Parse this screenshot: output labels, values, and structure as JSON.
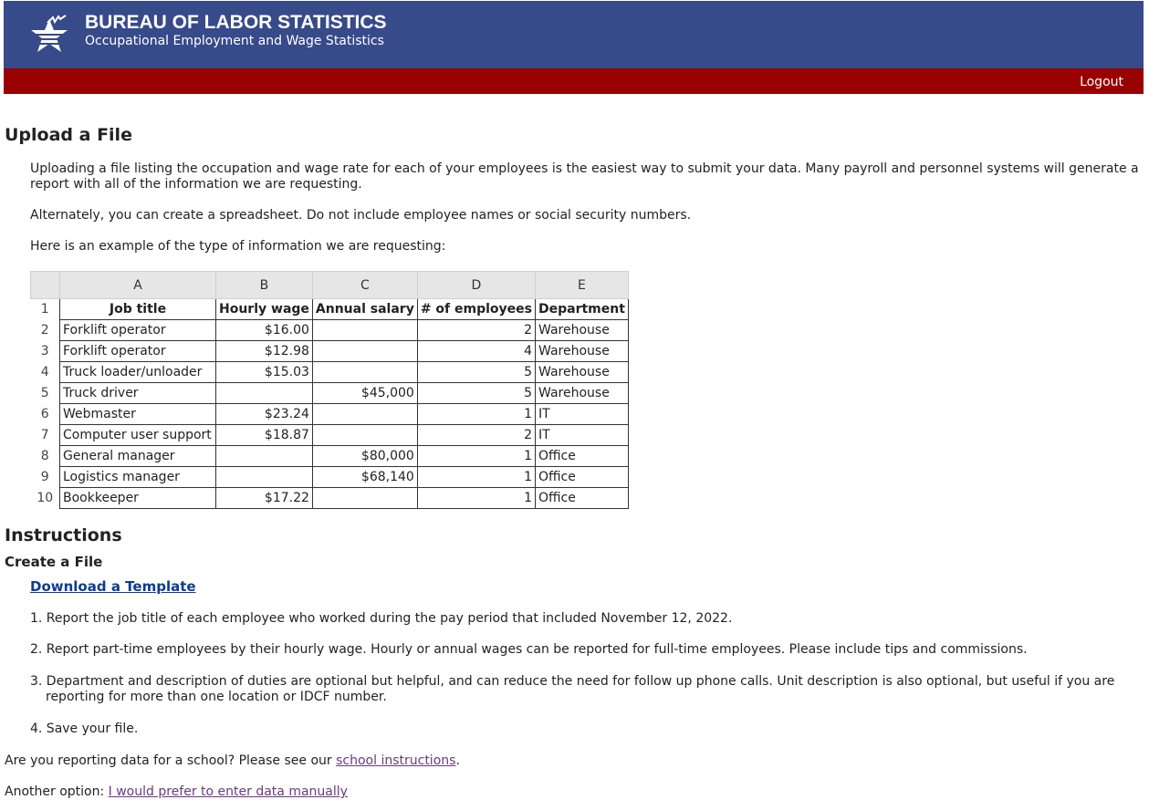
{
  "header": {
    "title": "BUREAU OF LABOR STATISTICS",
    "subtitle": "Occupational Employment and Wage Statistics",
    "logout": "Logout",
    "colors": {
      "blue": "#374a8a",
      "red": "#990000"
    },
    "logo_icon": "bls-star-logo"
  },
  "upload": {
    "heading": "Upload a File",
    "p1": "Uploading a file listing the occupation and wage rate for each of your employees is the easiest way to submit your data. Many payroll and personnel systems will generate a report with all of the information we are requesting.",
    "p2": "Alternately, you can create a spreadsheet. Do not include employee names or social security numbers.",
    "p3": "Here is an example of the type of information we are requesting:"
  },
  "spreadsheet": {
    "col_letters": [
      "A",
      "B",
      "C",
      "D",
      "E"
    ],
    "headers": [
      "Job title",
      "Hourly wage",
      "Annual salary",
      "# of employees",
      "Department"
    ],
    "rows": [
      [
        "Forklift operator",
        "$16.00",
        "",
        "2",
        "Warehouse"
      ],
      [
        "Forklift operator",
        "$12.98",
        "",
        "4",
        "Warehouse"
      ],
      [
        "Truck loader/unloader",
        "$15.03",
        "",
        "5",
        "Warehouse"
      ],
      [
        "Truck driver",
        "",
        "$45,000",
        "5",
        "Warehouse"
      ],
      [
        "Webmaster",
        "$23.24",
        "",
        "1",
        "IT"
      ],
      [
        "Computer user support",
        "$18.87",
        "",
        "2",
        "IT"
      ],
      [
        "General manager",
        "",
        "$80,000",
        "1",
        "Office"
      ],
      [
        "Logistics manager",
        "",
        "$68,140",
        "1",
        "Office"
      ],
      [
        "Bookkeeper",
        "$17.22",
        "",
        "1",
        "Office"
      ]
    ]
  },
  "instructions": {
    "heading": "Instructions",
    "subheading": "Create a File",
    "template_link": "Download a Template",
    "steps": [
      "1. Report the job title of each employee who worked during the pay period that included November 12, 2022.",
      "2. Report part-time employees by their hourly wage. Hourly or annual wages can be reported for full-time employees. Please include tips and commissions.",
      "3. Department and description of duties are optional but helpful, and can reduce the need for follow up phone calls. Unit description is also optional, but useful if you are reporting for more than one location or IDCF number.",
      "4. Save your file."
    ],
    "school_text": "Are you reporting data for a school? Please see our ",
    "school_link": "school instructions",
    "school_end": ".",
    "manual_text": "Another option: ",
    "manual_link": "I would prefer to enter data manually"
  }
}
